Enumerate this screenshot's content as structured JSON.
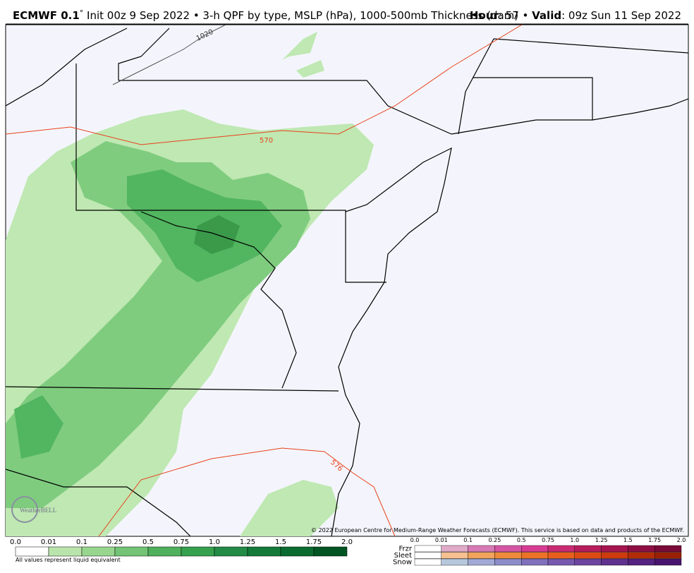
{
  "header": {
    "model": "ECMWF 0.1",
    "degree": "°",
    "description": " Init 00z 9 Sep 2022 • 3-h QPF by type, MSLP (hPa), 1000-500mb Thickness (dam)",
    "hour_label": "Hour",
    "hour": ": 57 • ",
    "valid_label": "Valid",
    "valid": ": 09z Sun 11 Sep 2022"
  },
  "map": {
    "contours": [
      "1020",
      "570",
      "576"
    ],
    "logo": "WeatherBELL",
    "copyright": "© 2022 European Centre for Medium-Range Weather Forecasts (ECMWF). This service is based on data and products of the ECMWF."
  },
  "legend": {
    "rain_labels": [
      "0.0",
      "0.01",
      "0.1",
      "0.25",
      "0.5",
      "0.75",
      "1.0",
      "1.25",
      "1.5",
      "1.75",
      "2.0"
    ],
    "note": "All values represent liquid equivalent",
    "ptype_rows": [
      "Frzr",
      "Sleet",
      "Snow"
    ],
    "ptype_labels": [
      "0.0",
      "0.01",
      "0.1",
      "0.25",
      "0.5",
      "0.75",
      "1.0",
      "1.25",
      "1.5",
      "1.75",
      "2.0"
    ]
  }
}
